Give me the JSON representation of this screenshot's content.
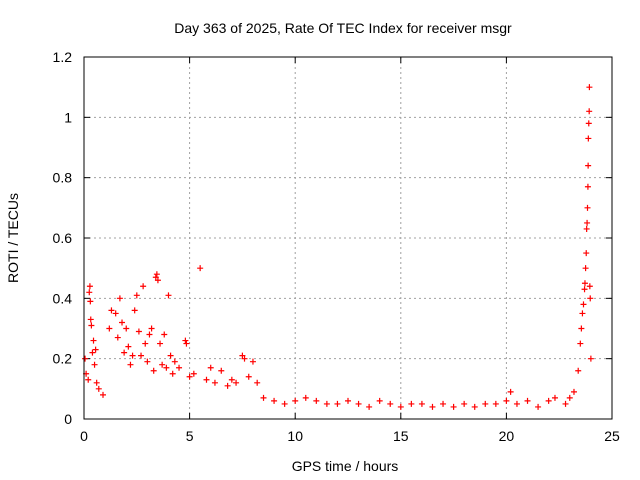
{
  "chart_data": {
    "type": "scatter",
    "title": "Day 363 of 2025, Rate Of TEC Index for receiver msgr",
    "xlabel": "GPS time / hours",
    "ylabel": "ROTI / TECUs",
    "xlim": [
      0,
      25
    ],
    "ylim": [
      0,
      1.2
    ],
    "x_ticks": [
      0,
      5,
      10,
      15,
      20,
      25
    ],
    "x_tick_labels": [
      "0",
      "5",
      "10",
      "15",
      "20",
      "25"
    ],
    "y_ticks": [
      0,
      0.2,
      0.4,
      0.6,
      0.8,
      1.0,
      1.2
    ],
    "y_tick_labels": [
      "0",
      "0.2",
      "0.4",
      "0.6",
      "0.8",
      "1",
      "1.2"
    ],
    "grid": true,
    "marker": "+",
    "color": "#ff0000",
    "series": [
      {
        "name": "ROTI",
        "points": [
          [
            0.05,
            0.2
          ],
          [
            0.1,
            0.15
          ],
          [
            0.2,
            0.13
          ],
          [
            0.25,
            0.42
          ],
          [
            0.28,
            0.44
          ],
          [
            0.3,
            0.39
          ],
          [
            0.32,
            0.33
          ],
          [
            0.35,
            0.31
          ],
          [
            0.4,
            0.22
          ],
          [
            0.45,
            0.26
          ],
          [
            0.5,
            0.18
          ],
          [
            0.55,
            0.23
          ],
          [
            0.6,
            0.12
          ],
          [
            0.7,
            0.1
          ],
          [
            0.9,
            0.08
          ],
          [
            1.2,
            0.3
          ],
          [
            1.3,
            0.36
          ],
          [
            1.5,
            0.35
          ],
          [
            1.6,
            0.27
          ],
          [
            1.7,
            0.4
          ],
          [
            1.8,
            0.32
          ],
          [
            1.9,
            0.22
          ],
          [
            2.0,
            0.3
          ],
          [
            2.1,
            0.24
          ],
          [
            2.2,
            0.18
          ],
          [
            2.3,
            0.21
          ],
          [
            2.4,
            0.36
          ],
          [
            2.5,
            0.41
          ],
          [
            2.6,
            0.29
          ],
          [
            2.7,
            0.21
          ],
          [
            2.8,
            0.44
          ],
          [
            2.9,
            0.25
          ],
          [
            3.0,
            0.19
          ],
          [
            3.1,
            0.28
          ],
          [
            3.2,
            0.3
          ],
          [
            3.3,
            0.16
          ],
          [
            3.4,
            0.47
          ],
          [
            3.45,
            0.48
          ],
          [
            3.5,
            0.46
          ],
          [
            3.6,
            0.25
          ],
          [
            3.7,
            0.18
          ],
          [
            3.8,
            0.28
          ],
          [
            3.9,
            0.17
          ],
          [
            4.0,
            0.41
          ],
          [
            4.1,
            0.21
          ],
          [
            4.2,
            0.15
          ],
          [
            4.3,
            0.19
          ],
          [
            4.5,
            0.17
          ],
          [
            4.8,
            0.26
          ],
          [
            4.85,
            0.25
          ],
          [
            5.0,
            0.14
          ],
          [
            5.2,
            0.15
          ],
          [
            5.5,
            0.5
          ],
          [
            5.8,
            0.13
          ],
          [
            6.0,
            0.17
          ],
          [
            6.2,
            0.12
          ],
          [
            6.5,
            0.16
          ],
          [
            6.8,
            0.11
          ],
          [
            7.0,
            0.13
          ],
          [
            7.2,
            0.12
          ],
          [
            7.5,
            0.21
          ],
          [
            7.6,
            0.2
          ],
          [
            7.8,
            0.14
          ],
          [
            8.0,
            0.19
          ],
          [
            8.2,
            0.12
          ],
          [
            8.5,
            0.07
          ],
          [
            9.0,
            0.06
          ],
          [
            9.5,
            0.05
          ],
          [
            10.0,
            0.06
          ],
          [
            10.5,
            0.07
          ],
          [
            11.0,
            0.06
          ],
          [
            11.5,
            0.05
          ],
          [
            12.0,
            0.05
          ],
          [
            12.5,
            0.06
          ],
          [
            13.0,
            0.05
          ],
          [
            13.5,
            0.04
          ],
          [
            14.0,
            0.06
          ],
          [
            14.5,
            0.05
          ],
          [
            15.0,
            0.04
          ],
          [
            15.5,
            0.05
          ],
          [
            16.0,
            0.05
          ],
          [
            16.5,
            0.04
          ],
          [
            17.0,
            0.05
          ],
          [
            17.5,
            0.04
          ],
          [
            18.0,
            0.05
          ],
          [
            18.5,
            0.04
          ],
          [
            19.0,
            0.05
          ],
          [
            19.5,
            0.05
          ],
          [
            20.0,
            0.06
          ],
          [
            20.2,
            0.09
          ],
          [
            20.5,
            0.05
          ],
          [
            21.0,
            0.06
          ],
          [
            21.5,
            0.04
          ],
          [
            22.0,
            0.06
          ],
          [
            22.3,
            0.07
          ],
          [
            22.8,
            0.05
          ],
          [
            23.0,
            0.07
          ],
          [
            23.2,
            0.09
          ],
          [
            23.4,
            0.16
          ],
          [
            23.5,
            0.25
          ],
          [
            23.55,
            0.3
          ],
          [
            23.6,
            0.35
          ],
          [
            23.65,
            0.38
          ],
          [
            23.7,
            0.43
          ],
          [
            23.72,
            0.45
          ],
          [
            23.75,
            0.5
          ],
          [
            23.78,
            0.55
          ],
          [
            23.8,
            0.63
          ],
          [
            23.82,
            0.65
          ],
          [
            23.84,
            0.7
          ],
          [
            23.86,
            0.77
          ],
          [
            23.87,
            0.84
          ],
          [
            23.88,
            0.93
          ],
          [
            23.9,
            0.98
          ],
          [
            23.92,
            1.02
          ],
          [
            23.93,
            1.1
          ],
          [
            23.95,
            0.44
          ],
          [
            23.97,
            0.4
          ],
          [
            24.0,
            0.2
          ]
        ]
      }
    ]
  }
}
